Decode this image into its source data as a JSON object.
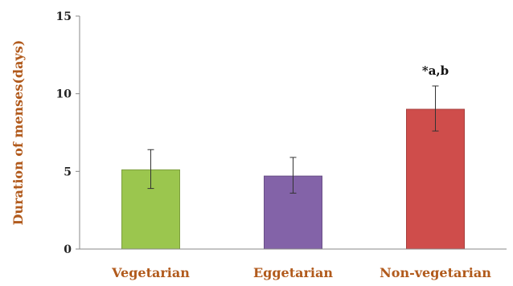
{
  "chart_data": {
    "type": "bar",
    "title": "",
    "xlabel": "",
    "ylabel": "Duration of menses(days)",
    "ylim": [
      0,
      15
    ],
    "yticks": [
      0,
      5,
      10,
      15
    ],
    "categories": [
      "Vegetarian",
      "Eggetarian",
      "Non-vegetarian"
    ],
    "values": [
      5.1,
      4.7,
      9.0
    ],
    "error_low": [
      3.9,
      3.6,
      7.6
    ],
    "error_high": [
      6.4,
      5.9,
      10.5
    ],
    "bar_colors": [
      "#9bc64e",
      "#8363a8",
      "#cf4d4b"
    ],
    "annotations": [
      "",
      "",
      "*a,b"
    ],
    "label_color": "#b15a1c",
    "grid": false,
    "legend": "none"
  }
}
